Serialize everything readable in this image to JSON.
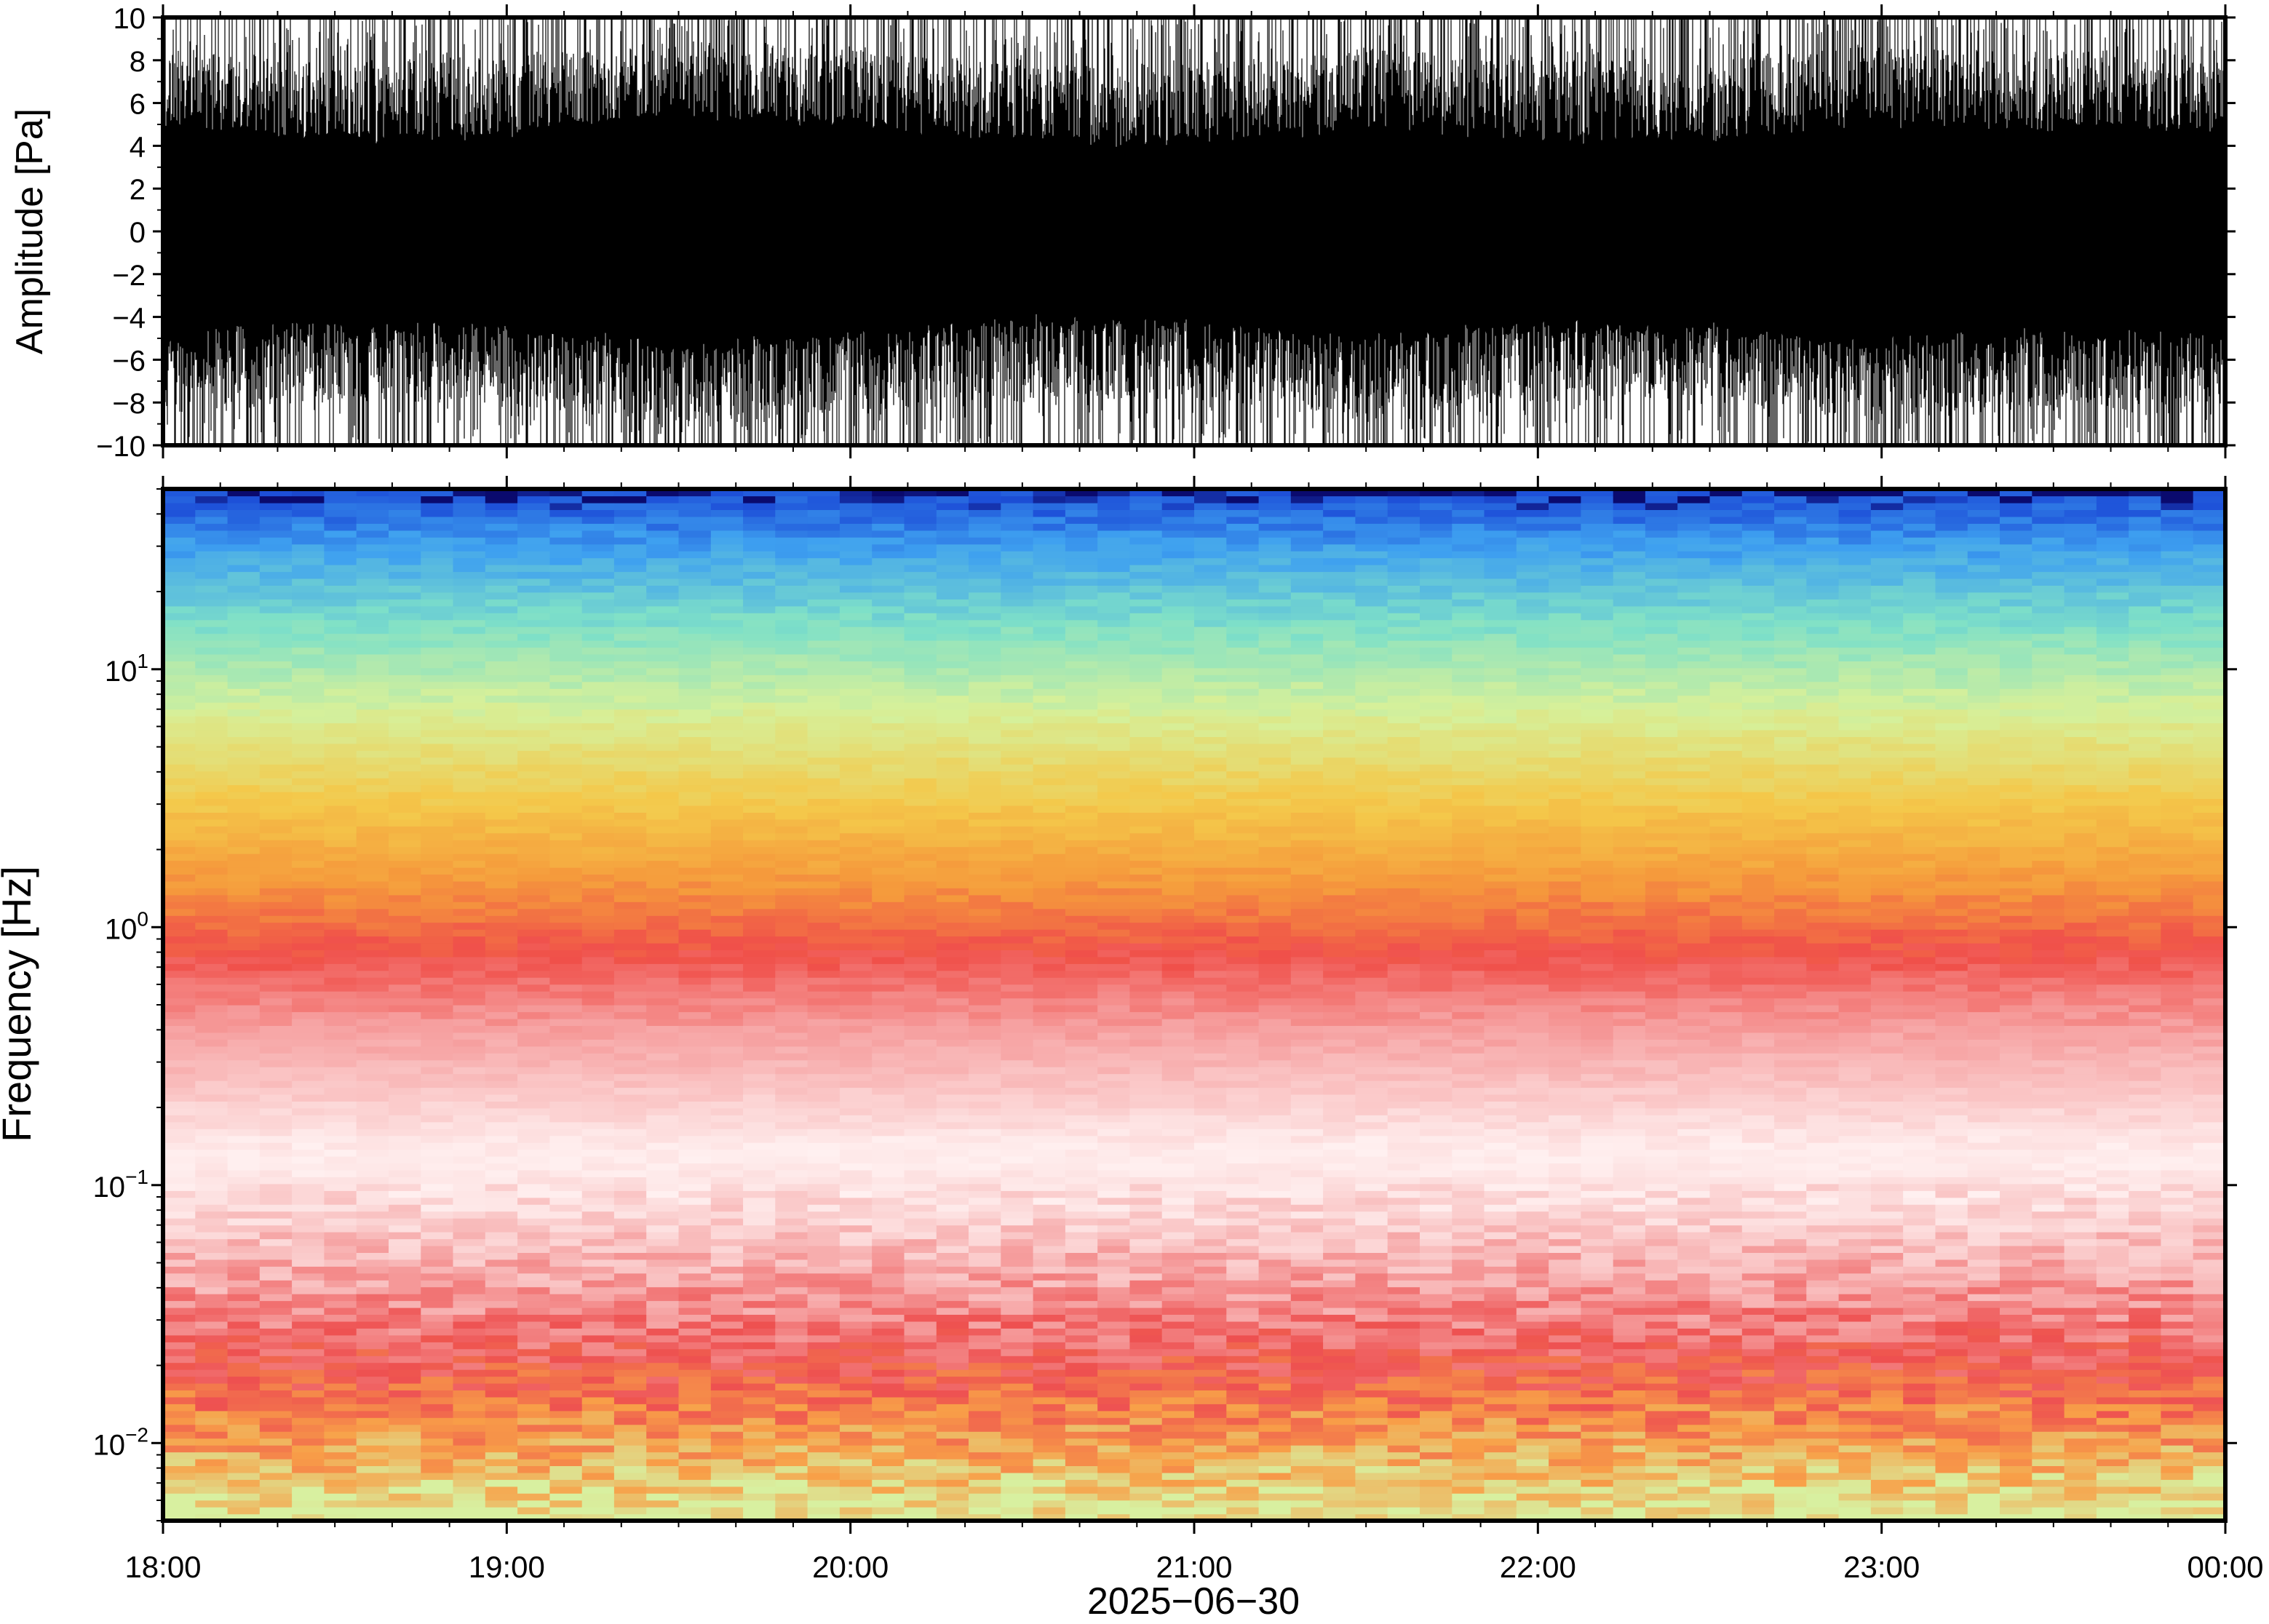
{
  "chart_data": [
    {
      "type": "line",
      "title": "",
      "ylabel": "Amplitude [Pa]",
      "ylim": [
        -10,
        10
      ],
      "yticks": [
        "10",
        "8",
        "6",
        "4",
        "2",
        "0",
        "−2",
        "−4",
        "−6",
        "−8",
        "−10"
      ],
      "ytick_values": [
        10,
        8,
        6,
        4,
        2,
        0,
        -2,
        -4,
        -6,
        -8,
        -10
      ],
      "xlim": [
        "18:00",
        "00:00"
      ],
      "series": [
        {
          "description_values": "dense pressure waveform, envelope clipped at ±10 Pa",
          "envelope_time": [
            "18:00",
            "18:30",
            "19:00",
            "19:30",
            "20:00",
            "20:30",
            "21:00",
            "21:30",
            "22:00",
            "22:30",
            "23:00",
            "23:30",
            "00:00"
          ],
          "envelope_core_pa": [
            4.5,
            4.0,
            4.2,
            5.0,
            4.6,
            3.8,
            3.9,
            4.6,
            4.0,
            4.1,
            4.8,
            4.4,
            4.6
          ],
          "envelope_peak_pa": [
            10,
            10,
            10,
            10,
            10,
            10,
            10,
            10,
            10,
            10,
            10,
            10,
            10
          ],
          "color": "#000000"
        }
      ]
    },
    {
      "type": "heatmap",
      "title": "",
      "ylabel": "Frequency [Hz]",
      "yscale": "log",
      "ylim_hz": [
        0.005,
        50
      ],
      "yticks": [
        {
          "base": "10",
          "exp": "1",
          "value": 10
        },
        {
          "base": "10",
          "exp": "0",
          "value": 1
        },
        {
          "base": "10",
          "exp": "−1",
          "value": 0.1
        },
        {
          "base": "10",
          "exp": "−2",
          "value": 0.01
        }
      ],
      "xlabel": "2025−06−30",
      "xticks": [
        "18:00",
        "19:00",
        "20:00",
        "21:00",
        "22:00",
        "23:00",
        "00:00"
      ],
      "colormap_bands": [
        {
          "freq_hz": 50,
          "color": "#0a0a6e"
        },
        {
          "freq_hz": 47,
          "color": "#1d4fd8"
        },
        {
          "freq_hz": 30,
          "color": "#3ea0f0"
        },
        {
          "freq_hz": 15,
          "color": "#7ee0c8"
        },
        {
          "freq_hz": 7,
          "color": "#d6f09a"
        },
        {
          "freq_hz": 3,
          "color": "#f4c84a"
        },
        {
          "freq_hz": 1.5,
          "color": "#f59a3c"
        },
        {
          "freq_hz": 0.8,
          "color": "#f0504a"
        },
        {
          "freq_hz": 0.4,
          "color": "#f6a0a0"
        },
        {
          "freq_hz": 0.13,
          "color": "#fff0f0"
        },
        {
          "freq_hz": 0.05,
          "color": "#f8b8b8"
        },
        {
          "freq_hz": 0.02,
          "color": "#ee5050"
        },
        {
          "freq_hz": 0.01,
          "color": "#f8a048"
        },
        {
          "freq_hz": 0.005,
          "color": "#d8f0a0"
        }
      ]
    }
  ]
}
